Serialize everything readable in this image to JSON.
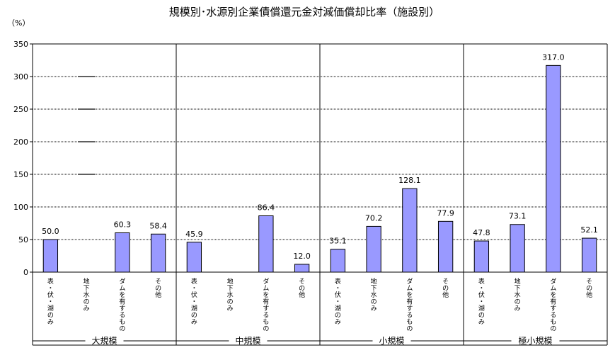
{
  "chart_data": {
    "type": "bar",
    "title": "規模別･水源別企業債償還元金対減価償却比率（施設別）",
    "y_unit": "（%）",
    "ylim": [
      0,
      350
    ],
    "yticks": [
      0,
      50,
      100,
      150,
      200,
      250,
      300,
      350
    ],
    "grid": true,
    "bar_color": "#9999ff",
    "groups": [
      {
        "name": "大規模",
        "categories": [
          "表・伏・湖のみ",
          "地下水のみ",
          "ダムを有するもの",
          "その他"
        ],
        "values": [
          50.0,
          null,
          60.3,
          58.4
        ],
        "labels": [
          "50.0",
          "",
          "60.3",
          "58.4"
        ],
        "dash_marks": [
          150,
          200,
          250,
          300
        ]
      },
      {
        "name": "中規模",
        "categories": [
          "表・伏・湖のみ",
          "地下水のみ",
          "ダムを有するもの",
          "その他"
        ],
        "values": [
          45.9,
          null,
          86.4,
          12.0
        ],
        "labels": [
          "45.9",
          "",
          "86.4",
          "12.0"
        ]
      },
      {
        "name": "小規模",
        "categories": [
          "表・伏・湖のみ",
          "地下水のみ",
          "ダムを有するもの",
          "その他"
        ],
        "values": [
          35.1,
          70.2,
          128.1,
          77.9
        ],
        "labels": [
          "35.1",
          "70.2",
          "128.1",
          "77.9"
        ]
      },
      {
        "name": "極小規模",
        "categories": [
          "表・伏・湖のみ",
          "地下水のみ",
          "ダムを有するもの",
          "その他"
        ],
        "values": [
          47.8,
          73.1,
          317.0,
          52.1
        ],
        "labels": [
          "47.8",
          "73.1",
          "317.0",
          "52.1"
        ]
      }
    ]
  }
}
